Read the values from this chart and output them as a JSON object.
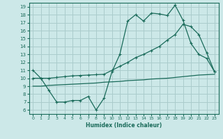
{
  "xlabel": "Humidex (Indice chaleur)",
  "bg_color": "#cce8e8",
  "grid_color": "#aacccc",
  "line_color": "#1a6b5a",
  "xlim": [
    -0.5,
    23.5
  ],
  "ylim": [
    5.5,
    19.5
  ],
  "xticks": [
    0,
    1,
    2,
    3,
    4,
    5,
    6,
    7,
    8,
    9,
    10,
    11,
    12,
    13,
    14,
    15,
    16,
    17,
    18,
    19,
    20,
    21,
    22,
    23
  ],
  "yticks": [
    6,
    7,
    8,
    9,
    10,
    11,
    12,
    13,
    14,
    15,
    16,
    17,
    18,
    19
  ],
  "line1_x": [
    0,
    1,
    2,
    3,
    4,
    5,
    6,
    7,
    8,
    9,
    10,
    11,
    12,
    13,
    14,
    15,
    16,
    17,
    18,
    19,
    20,
    21,
    22,
    23
  ],
  "line1_y": [
    11.0,
    10.0,
    8.5,
    7.0,
    7.0,
    7.2,
    7.2,
    7.7,
    6.0,
    7.5,
    10.8,
    13.0,
    17.2,
    18.0,
    17.2,
    18.2,
    18.1,
    17.9,
    19.2,
    17.3,
    14.4,
    13.0,
    12.5,
    10.8
  ],
  "line2_x": [
    0,
    1,
    2,
    3,
    4,
    5,
    6,
    7,
    8,
    9,
    10,
    11,
    12,
    13,
    14,
    15,
    16,
    17,
    18,
    19,
    20,
    21,
    22,
    23
  ],
  "line2_y": [
    10.0,
    10.0,
    10.0,
    10.1,
    10.2,
    10.3,
    10.35,
    10.4,
    10.45,
    10.5,
    11.0,
    11.5,
    12.0,
    12.6,
    13.0,
    13.5,
    14.0,
    14.8,
    15.5,
    16.8,
    16.5,
    15.5,
    13.2,
    10.8
  ],
  "line3_x": [
    0,
    1,
    2,
    3,
    4,
    5,
    6,
    7,
    8,
    9,
    10,
    11,
    12,
    13,
    14,
    15,
    16,
    17,
    18,
    19,
    20,
    21,
    22,
    23
  ],
  "line3_y": [
    9.0,
    9.0,
    9.1,
    9.15,
    9.2,
    9.25,
    9.3,
    9.35,
    9.4,
    9.5,
    9.55,
    9.6,
    9.7,
    9.75,
    9.8,
    9.9,
    9.95,
    10.0,
    10.1,
    10.2,
    10.3,
    10.4,
    10.45,
    10.5
  ]
}
